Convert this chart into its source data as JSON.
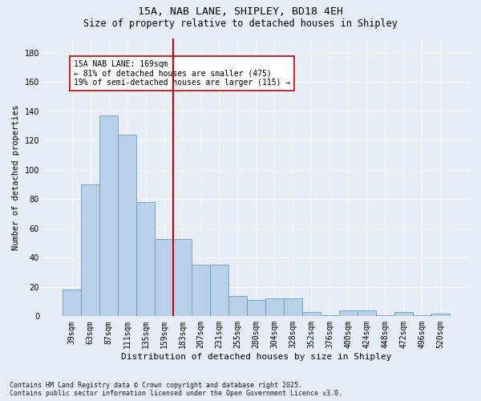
{
  "title1": "15A, NAB LANE, SHIPLEY, BD18 4EH",
  "title2": "Size of property relative to detached houses in Shipley",
  "xlabel": "Distribution of detached houses by size in Shipley",
  "ylabel": "Number of detached properties",
  "categories": [
    "39sqm",
    "63sqm",
    "87sqm",
    "111sqm",
    "135sqm",
    "159sqm",
    "183sqm",
    "207sqm",
    "231sqm",
    "255sqm",
    "280sqm",
    "304sqm",
    "328sqm",
    "352sqm",
    "376sqm",
    "400sqm",
    "424sqm",
    "448sqm",
    "472sqm",
    "496sqm",
    "520sqm"
  ],
  "values": [
    18,
    90,
    137,
    124,
    78,
    53,
    53,
    35,
    35,
    14,
    11,
    12,
    12,
    3,
    1,
    4,
    4,
    1,
    3,
    1,
    2
  ],
  "bar_color": "#b8d0e8",
  "bar_edge_color": "#6a9fc0",
  "bar_width": 1.0,
  "vline_color": "#cc0000",
  "annotation_text": "15A NAB LANE: 169sqm\n← 81% of detached houses are smaller (475)\n19% of semi-detached houses are larger (115) →",
  "annotation_box_color": "#ffffff",
  "annotation_box_edge": "#cc0000",
  "ylim": [
    0,
    190
  ],
  "yticks": [
    0,
    20,
    40,
    60,
    80,
    100,
    120,
    140,
    160,
    180
  ],
  "bg_color": "#e8eef7",
  "grid_color": "#ffffff",
  "footer": "Contains HM Land Registry data © Crown copyright and database right 2025.\nContains public sector information licensed under the Open Government Licence v3.0."
}
